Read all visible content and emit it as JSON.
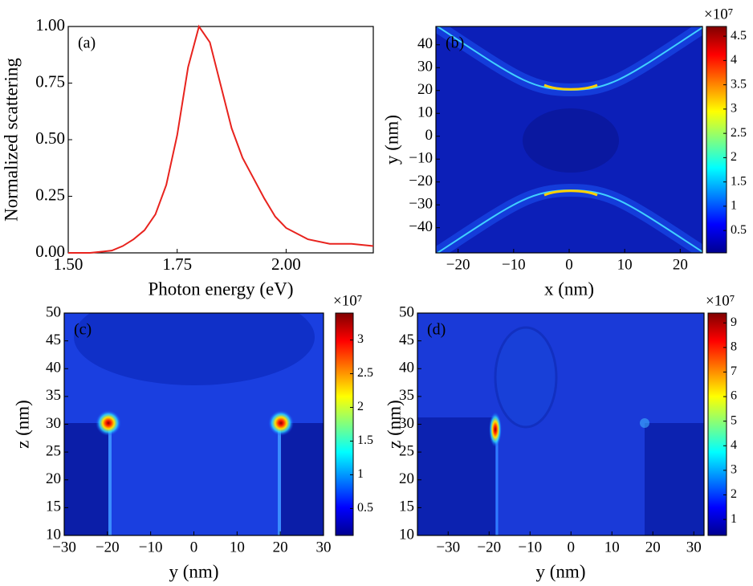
{
  "chart_data": [
    {
      "type": "line",
      "panel_label": "(a)",
      "xlabel": "Photon energy (eV)",
      "ylabel": "Normalized scattering",
      "xlim": [
        1.5,
        2.2
      ],
      "ylim": [
        0,
        1
      ],
      "xticks": [
        {
          "value": 1.5,
          "label": "1.50"
        },
        {
          "value": 1.75,
          "label": "1.75"
        },
        {
          "value": 2.0,
          "label": "2.00"
        }
      ],
      "yticks": [
        {
          "value": 0,
          "label": "0.00"
        },
        {
          "value": 0.25,
          "label": "0.25"
        },
        {
          "value": 0.5,
          "label": "0.50"
        },
        {
          "value": 0.75,
          "label": "0.75"
        },
        {
          "value": 1.0,
          "label": "1.00"
        }
      ],
      "color": "#e8231e",
      "x": [
        1.5,
        1.55,
        1.6,
        1.625,
        1.65,
        1.675,
        1.7,
        1.725,
        1.75,
        1.775,
        1.8,
        1.825,
        1.85,
        1.875,
        1.9,
        1.925,
        1.95,
        1.975,
        2.0,
        2.05,
        2.1,
        2.15,
        2.2
      ],
      "values": [
        0,
        0,
        0.01,
        0.03,
        0.06,
        0.1,
        0.17,
        0.3,
        0.52,
        0.82,
        1.0,
        0.93,
        0.74,
        0.55,
        0.42,
        0.33,
        0.24,
        0.16,
        0.11,
        0.06,
        0.04,
        0.04,
        0.03
      ]
    },
    {
      "type": "heatmap",
      "panel_label": "(b)",
      "xlabel": "x (nm)",
      "ylabel": "y (nm)",
      "xlim": [
        -24,
        24
      ],
      "ylim": [
        -51,
        48
      ],
      "xticks": [
        {
          "value": -20,
          "label": "−20"
        },
        {
          "value": -10,
          "label": "−10"
        },
        0,
        10,
        20
      ],
      "yticks": [
        {
          "value": -40,
          "label": "−40"
        },
        {
          "value": -30,
          "label": "−30"
        },
        {
          "value": -20,
          "label": "−20"
        },
        {
          "value": -10,
          "label": "−10"
        },
        0,
        10,
        20,
        30,
        40
      ],
      "colorbar": {
        "label": "×10⁷",
        "lim": [
          0.04,
          4.7
        ],
        "ticks": [
          0.5,
          1,
          1.5,
          2,
          2.5,
          3,
          3.5,
          4,
          4.5
        ]
      }
    },
    {
      "type": "heatmap",
      "panel_label": "(c)",
      "xlabel": "y (nm)",
      "ylabel": "z (nm)",
      "xlim": [
        -30,
        30
      ],
      "ylim": [
        10,
        50
      ],
      "xticks": [
        {
          "value": -30,
          "label": "−30"
        },
        {
          "value": -20,
          "label": "−20"
        },
        {
          "value": -10,
          "label": "−10"
        },
        0,
        10,
        20,
        30
      ],
      "yticks": [
        10,
        15,
        20,
        25,
        30,
        35,
        40,
        45,
        50
      ],
      "colorbar": {
        "label": "×10⁷",
        "lim": [
          0.1,
          3.4
        ],
        "ticks": [
          0.5,
          1,
          1.5,
          2,
          2.5,
          3
        ]
      }
    },
    {
      "type": "heatmap",
      "panel_label": "(d)",
      "xlabel": "y (nm)",
      "ylabel": "z (nm)",
      "xlim": [
        -37.5,
        32.5
      ],
      "ylim": [
        10,
        50
      ],
      "xticks": [
        {
          "value": -30,
          "label": "−30"
        },
        {
          "value": -20,
          "label": "−20"
        },
        {
          "value": -10,
          "label": "−10"
        },
        0,
        10,
        20,
        30
      ],
      "yticks": [
        10,
        15,
        20,
        25,
        30,
        35,
        40,
        45,
        50
      ],
      "colorbar": {
        "label": "×10⁷",
        "lim": [
          0.35,
          9.4
        ],
        "ticks": [
          1,
          2,
          3,
          4,
          5,
          6,
          7,
          8,
          9
        ]
      }
    }
  ]
}
